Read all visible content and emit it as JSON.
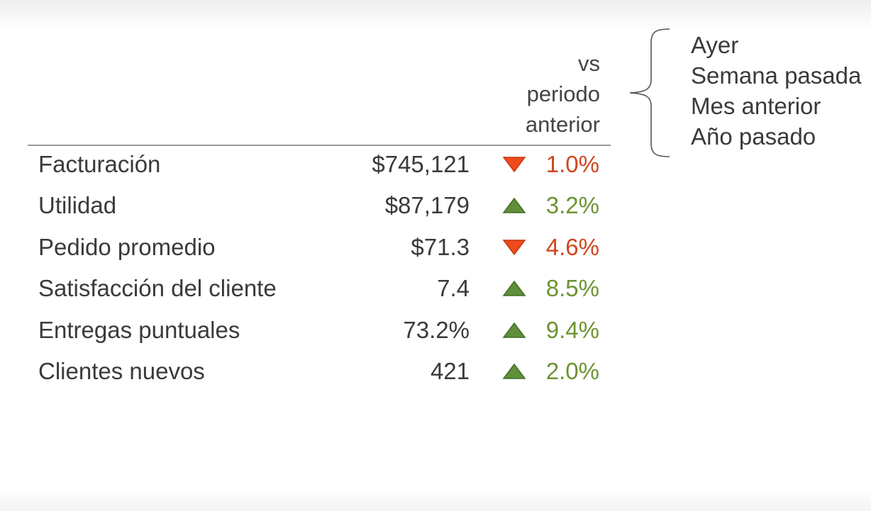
{
  "header": {
    "line1": "vs",
    "line2": "periodo",
    "line3": "anterior"
  },
  "rows": [
    {
      "label": "Facturación",
      "value": "$745,121",
      "change": "1.0%",
      "direction": "down"
    },
    {
      "label": "Utilidad",
      "value": "$87,179",
      "change": "3.2%",
      "direction": "up"
    },
    {
      "label": "Pedido promedio",
      "value": "$71.3",
      "change": "4.6%",
      "direction": "down"
    },
    {
      "label": "Satisfacción del cliente",
      "value": "7.4",
      "change": "8.5%",
      "direction": "up"
    },
    {
      "label": "Entregas puntuales",
      "value": "73.2%",
      "change": "9.4%",
      "direction": "up"
    },
    {
      "label": "Clientes nuevos",
      "value": "421",
      "change": "2.0%",
      "direction": "up"
    }
  ],
  "periods": [
    "Ayer",
    "Semana pasada",
    "Mes anterior",
    "Año pasado"
  ],
  "colors": {
    "down": "#d0461e",
    "down_icon": "#f04a1e",
    "up": "#6c9331",
    "up_icon": "#5f8f3a"
  }
}
